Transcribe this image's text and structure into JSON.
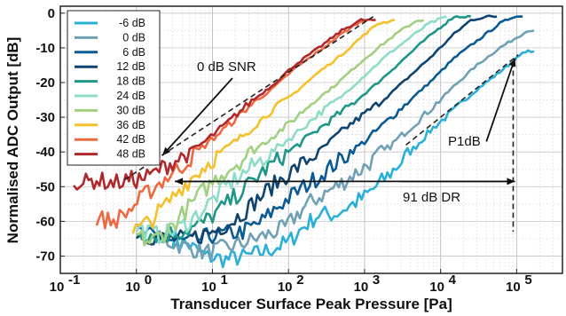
{
  "chart_data": {
    "type": "line",
    "xlabel": "Transducer Surface Peak Pressure [Pa]",
    "ylabel": "Normalised ADC Output [dB]",
    "xscale": "log",
    "xlim": [
      0.1,
      400000
    ],
    "ylim": [
      -75,
      2
    ],
    "grid": true,
    "legend_position": "top-left",
    "x_ticks": [
      {
        "value": 0.1,
        "base": "10",
        "exp": "-1"
      },
      {
        "value": 1,
        "base": "10",
        "exp": "0"
      },
      {
        "value": 10,
        "base": "10",
        "exp": "1"
      },
      {
        "value": 100,
        "base": "10",
        "exp": "2"
      },
      {
        "value": 1000,
        "base": "10",
        "exp": "3"
      },
      {
        "value": 10000,
        "base": "10",
        "exp": "4"
      },
      {
        "value": 100000,
        "base": "10",
        "exp": "5"
      }
    ],
    "y_ticks": [
      {
        "value": 0,
        "label": "0"
      },
      {
        "value": -10,
        "label": "-10"
      },
      {
        "value": -20,
        "label": "-20"
      },
      {
        "value": -30,
        "label": "-30"
      },
      {
        "value": -40,
        "label": "-40"
      },
      {
        "value": -50,
        "label": "-50"
      },
      {
        "value": -60,
        "label": "-60"
      },
      {
        "value": -70,
        "label": "-70"
      }
    ],
    "series": [
      {
        "name": "-6 dB",
        "color": "#2ab0d8",
        "points": [
          [
            3,
            -65
          ],
          [
            5,
            -67
          ],
          [
            8,
            -70
          ],
          [
            15,
            -71
          ],
          [
            30,
            -70
          ],
          [
            60,
            -68
          ],
          [
            100,
            -66
          ],
          [
            150,
            -62
          ],
          [
            250,
            -58
          ],
          [
            400,
            -58
          ],
          [
            700,
            -55
          ],
          [
            1000,
            -53
          ],
          [
            2000,
            -47
          ],
          [
            4000,
            -40
          ],
          [
            8000,
            -33
          ],
          [
            15000,
            -28
          ],
          [
            30000,
            -22
          ],
          [
            60000,
            -17
          ],
          [
            100000,
            -13
          ],
          [
            130000,
            -11
          ],
          [
            170000,
            -11
          ]
        ]
      },
      {
        "name": "0 dB",
        "color": "#6fa0b4",
        "points": [
          [
            2,
            -65
          ],
          [
            4,
            -67
          ],
          [
            8,
            -69
          ],
          [
            20,
            -67
          ],
          [
            50,
            -64
          ],
          [
            90,
            -62
          ],
          [
            130,
            -58
          ],
          [
            180,
            -55
          ],
          [
            300,
            -52
          ],
          [
            500,
            -49
          ],
          [
            900,
            -45
          ],
          [
            2000,
            -39
          ],
          [
            4000,
            -33
          ],
          [
            8000,
            -27
          ],
          [
            15000,
            -21
          ],
          [
            30000,
            -15
          ],
          [
            60000,
            -10
          ],
          [
            100000,
            -7
          ],
          [
            140000,
            -5
          ],
          [
            170000,
            -5
          ]
        ]
      },
      {
        "name": "6 dB",
        "color": "#0a5a94",
        "points": [
          [
            1,
            -63
          ],
          [
            2,
            -65
          ],
          [
            5,
            -66
          ],
          [
            10,
            -64
          ],
          [
            25,
            -63
          ],
          [
            45,
            -60
          ],
          [
            70,
            -56
          ],
          [
            120,
            -52
          ],
          [
            250,
            -47
          ],
          [
            500,
            -42
          ],
          [
            1000,
            -37
          ],
          [
            2000,
            -31
          ],
          [
            4000,
            -25
          ],
          [
            8000,
            -19
          ],
          [
            15000,
            -13
          ],
          [
            30000,
            -8
          ],
          [
            60000,
            -3
          ],
          [
            90000,
            -1
          ],
          [
            120000,
            -1
          ]
        ]
      },
      {
        "name": "12 dB",
        "color": "#0f4470",
        "points": [
          [
            1,
            -63
          ],
          [
            2,
            -65
          ],
          [
            5,
            -65
          ],
          [
            10,
            -63
          ],
          [
            18,
            -60
          ],
          [
            30,
            -56
          ],
          [
            60,
            -50
          ],
          [
            120,
            -45
          ],
          [
            250,
            -40
          ],
          [
            500,
            -34
          ],
          [
            1000,
            -29
          ],
          [
            2000,
            -24
          ],
          [
            4000,
            -18
          ],
          [
            8000,
            -12
          ],
          [
            15000,
            -6
          ],
          [
            25000,
            -2
          ],
          [
            40000,
            -1
          ],
          [
            55000,
            -1
          ]
        ]
      },
      {
        "name": "18 dB",
        "color": "#1e9688",
        "points": [
          [
            1,
            -63
          ],
          [
            2,
            -64
          ],
          [
            4,
            -63
          ],
          [
            7,
            -61
          ],
          [
            12,
            -57
          ],
          [
            25,
            -51
          ],
          [
            50,
            -45
          ],
          [
            100,
            -40
          ],
          [
            200,
            -35
          ],
          [
            400,
            -30
          ],
          [
            800,
            -25
          ],
          [
            1500,
            -20
          ],
          [
            3000,
            -14
          ],
          [
            6000,
            -8
          ],
          [
            10000,
            -4
          ],
          [
            15000,
            -1
          ],
          [
            25000,
            -1
          ]
        ]
      },
      {
        "name": "24 dB",
        "color": "#8edcc8",
        "points": [
          [
            1,
            -62
          ],
          [
            2,
            -64
          ],
          [
            3,
            -63
          ],
          [
            5,
            -60
          ],
          [
            8,
            -56
          ],
          [
            15,
            -50
          ],
          [
            30,
            -45
          ],
          [
            60,
            -40
          ],
          [
            120,
            -35
          ],
          [
            250,
            -29
          ],
          [
            500,
            -24
          ],
          [
            1000,
            -18
          ],
          [
            2000,
            -12
          ],
          [
            4000,
            -7
          ],
          [
            7000,
            -3
          ],
          [
            12000,
            -1
          ]
        ]
      },
      {
        "name": "30 dB",
        "color": "#a2cf80",
        "points": [
          [
            1,
            -64
          ],
          [
            1.5,
            -66
          ],
          [
            2.5,
            -63
          ],
          [
            4,
            -58
          ],
          [
            7,
            -52
          ],
          [
            12,
            -47
          ],
          [
            25,
            -42
          ],
          [
            50,
            -37
          ],
          [
            100,
            -32
          ],
          [
            200,
            -26
          ],
          [
            400,
            -21
          ],
          [
            800,
            -15
          ],
          [
            1500,
            -10
          ],
          [
            3000,
            -5
          ],
          [
            5000,
            -2
          ],
          [
            6000,
            -2
          ]
        ]
      },
      {
        "name": "36 dB",
        "color": "#f5c02a",
        "points": [
          [
            0.9,
            -63
          ],
          [
            1.5,
            -60
          ],
          [
            2.5,
            -55
          ],
          [
            4,
            -50
          ],
          [
            8,
            -44
          ],
          [
            15,
            -39
          ],
          [
            30,
            -34
          ],
          [
            60,
            -28
          ],
          [
            120,
            -23
          ],
          [
            250,
            -17
          ],
          [
            500,
            -12
          ],
          [
            900,
            -7
          ],
          [
            1500,
            -3
          ],
          [
            2500,
            -2
          ]
        ]
      },
      {
        "name": "42 dB",
        "color": "#ee6840",
        "points": [
          [
            0.3,
            -59
          ],
          [
            0.5,
            -60
          ],
          [
            0.8,
            -57
          ],
          [
            1.2,
            -53
          ],
          [
            2,
            -49
          ],
          [
            4,
            -44
          ],
          [
            8,
            -38
          ],
          [
            15,
            -33
          ],
          [
            30,
            -27
          ],
          [
            60,
            -22
          ],
          [
            120,
            -16
          ],
          [
            250,
            -11
          ],
          [
            500,
            -6
          ],
          [
            800,
            -3
          ],
          [
            1000,
            -2
          ]
        ]
      },
      {
        "name": "48 dB",
        "color": "#b0282c",
        "points": [
          [
            0.15,
            -48
          ],
          [
            0.2,
            -49
          ],
          [
            0.3,
            -48
          ],
          [
            0.5,
            -49
          ],
          [
            0.8,
            -48
          ],
          [
            1,
            -48
          ],
          [
            1.5,
            -47
          ],
          [
            2,
            -45
          ],
          [
            3,
            -43
          ],
          [
            5,
            -40
          ],
          [
            8,
            -37
          ],
          [
            15,
            -32
          ],
          [
            30,
            -26
          ],
          [
            60,
            -21
          ],
          [
            120,
            -15
          ],
          [
            250,
            -10
          ],
          [
            500,
            -5
          ],
          [
            900,
            -2
          ],
          [
            1400,
            -2
          ]
        ]
      }
    ],
    "annotations": {
      "snr_label": "0 dB SNR",
      "p1db_label": "P1dB",
      "dr_label": "91 dB DR"
    }
  }
}
